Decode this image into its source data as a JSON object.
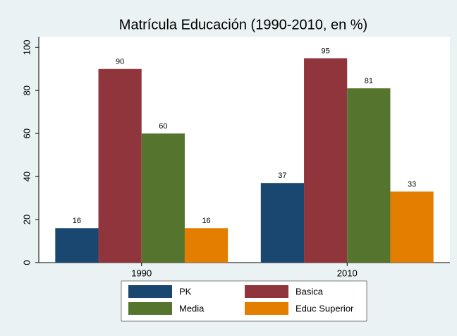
{
  "chart_data": {
    "type": "bar",
    "title": "Matrícula Educación (1990-2010, en %)",
    "categories": [
      "1990",
      "2010"
    ],
    "series": [
      {
        "name": "PK",
        "color": "#1a476f",
        "values": [
          16,
          37
        ]
      },
      {
        "name": "Basica",
        "color": "#90353b",
        "values": [
          90,
          95
        ]
      },
      {
        "name": "Media",
        "color": "#55752f",
        "values": [
          60,
          81
        ]
      },
      {
        "name": "Educ Superior",
        "color": "#e37e00",
        "values": [
          16,
          33
        ]
      }
    ],
    "ylim": [
      0,
      105
    ],
    "yticks": [
      0,
      20,
      40,
      60,
      80,
      100
    ],
    "grid": false
  }
}
